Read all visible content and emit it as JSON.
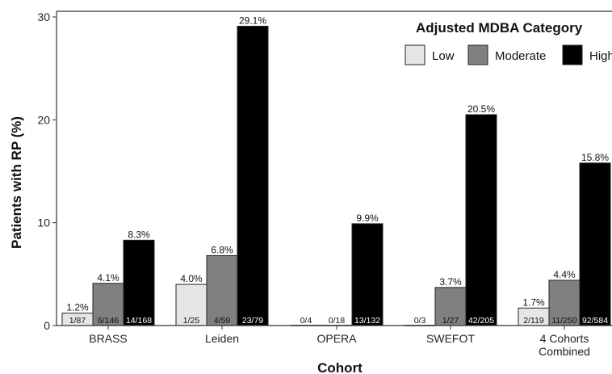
{
  "chart_data": {
    "type": "bar",
    "title": "",
    "xlabel": "Cohort",
    "ylabel": "Patients with RP (%)",
    "ylim": [
      0,
      30
    ],
    "yticks": [
      0,
      10,
      20,
      30
    ],
    "grid": false,
    "legend_title": "Adjusted MDBA Category",
    "legend_position": "top-right",
    "categories": [
      [
        "BRASS"
      ],
      [
        "Leiden"
      ],
      [
        "OPERA"
      ],
      [
        "SWEFOT"
      ],
      [
        "4 Cohorts",
        "Combined"
      ]
    ],
    "series": [
      {
        "name": "Low",
        "color": "#e6e6e6",
        "values": [
          1.2,
          4.0,
          0,
          0,
          1.7
        ],
        "labels": [
          "1.2%",
          "4.0%",
          "",
          "",
          "1.7%"
        ],
        "fractions": [
          "1/87",
          "1/25",
          "0/4",
          "0/3",
          "2/119"
        ],
        "fraction_color": "#111111"
      },
      {
        "name": "Moderate",
        "color": "#808080",
        "values": [
          4.1,
          6.8,
          0,
          3.7,
          4.4
        ],
        "labels": [
          "4.1%",
          "6.8%",
          "",
          "3.7%",
          "4.4%"
        ],
        "fractions": [
          "6/146",
          "4/59",
          "0/18",
          "1/27",
          "11/250"
        ],
        "fraction_color": "#111111"
      },
      {
        "name": "High",
        "color": "#000000",
        "values": [
          8.3,
          29.1,
          9.9,
          20.5,
          15.8
        ],
        "labels": [
          "8.3%",
          "29.1%",
          "9.9%",
          "20.5%",
          "15.8%"
        ],
        "fractions": [
          "14/168",
          "23/79",
          "13/132",
          "42/205",
          "92/584"
        ],
        "fraction_color": "#ffffff"
      }
    ]
  }
}
